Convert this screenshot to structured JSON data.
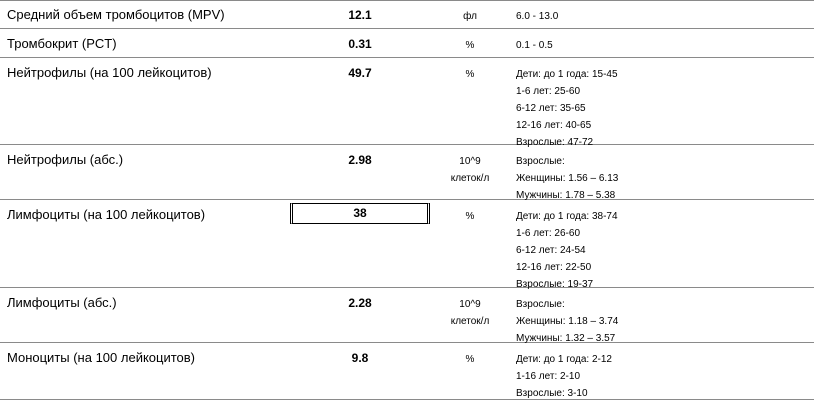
{
  "rows": [
    {
      "name": "Средний объем тромбоцитов (MPV)",
      "value": "12.1",
      "unit": [
        "фл"
      ],
      "reference": [
        "6.0 - 13.0"
      ]
    },
    {
      "name": "Тромбокрит (PCT)",
      "value": "0.31",
      "unit": [
        "%"
      ],
      "reference": [
        "0.1 - 0.5"
      ]
    },
    {
      "name": "Нейтрофилы (на 100 лейкоцитов)",
      "value": "49.7",
      "unit": [
        "%"
      ],
      "reference": [
        "Дети: до 1 года: 15-45",
        "1-6 лет: 25-60",
        "6-12 лет: 35-65",
        "12-16 лет: 40-65",
        "Взрослые: 47-72"
      ]
    },
    {
      "name": "Нейтрофилы (абс.)",
      "value": "2.98",
      "unit": [
        "10^9",
        "клеток/л"
      ],
      "reference": [
        "Взрослые:",
        "Женщины: 1.56 – 6.13",
        "Мужчины: 1.78 – 5.38"
      ]
    },
    {
      "name": "Лимфоциты (на 100 лейкоцитов)",
      "value": "38",
      "unit": [
        "%"
      ],
      "reference": [
        "Дети: до 1 года: 38-74",
        "1-6 лет: 26-60",
        "6-12 лет: 24-54",
        "12-16 лет: 22-50",
        "Взрослые: 19-37"
      ]
    },
    {
      "name": "Лимфоциты (абс.)",
      "value": "2.28",
      "unit": [
        "10^9",
        "клеток/л"
      ],
      "reference": [
        "Взрослые:",
        "Женщины: 1.18 – 3.74",
        "Мужчины: 1.32 – 3.57"
      ]
    },
    {
      "name": "Моноциты (на 100 лейкоцитов)",
      "value": "9.8",
      "unit": [
        "%"
      ],
      "reference": [
        "Дети: до 1 года: 2-12",
        "1-16 лет: 2-10",
        "Взрослые: 3-10"
      ]
    }
  ]
}
